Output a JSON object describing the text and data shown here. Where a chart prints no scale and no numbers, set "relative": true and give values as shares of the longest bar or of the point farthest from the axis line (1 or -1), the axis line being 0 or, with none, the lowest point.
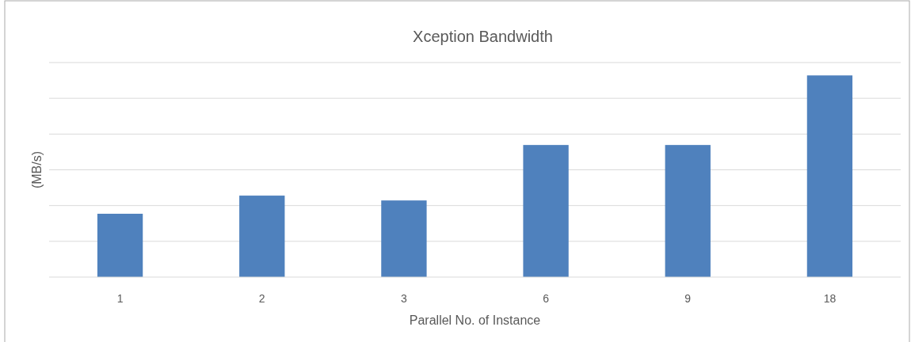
{
  "chart_data": {
    "type": "bar",
    "title": "Xception Bandwidth",
    "xlabel": "Parallel No. of Instance",
    "ylabel": "(MB/s)",
    "categories": [
      "1",
      "2",
      "3",
      "6",
      "9",
      "18"
    ],
    "values": [
      0.314,
      0.404,
      0.38,
      0.655,
      0.655,
      1
    ],
    "color": "#4f81bd",
    "relative": true,
    "grid": "y"
  }
}
